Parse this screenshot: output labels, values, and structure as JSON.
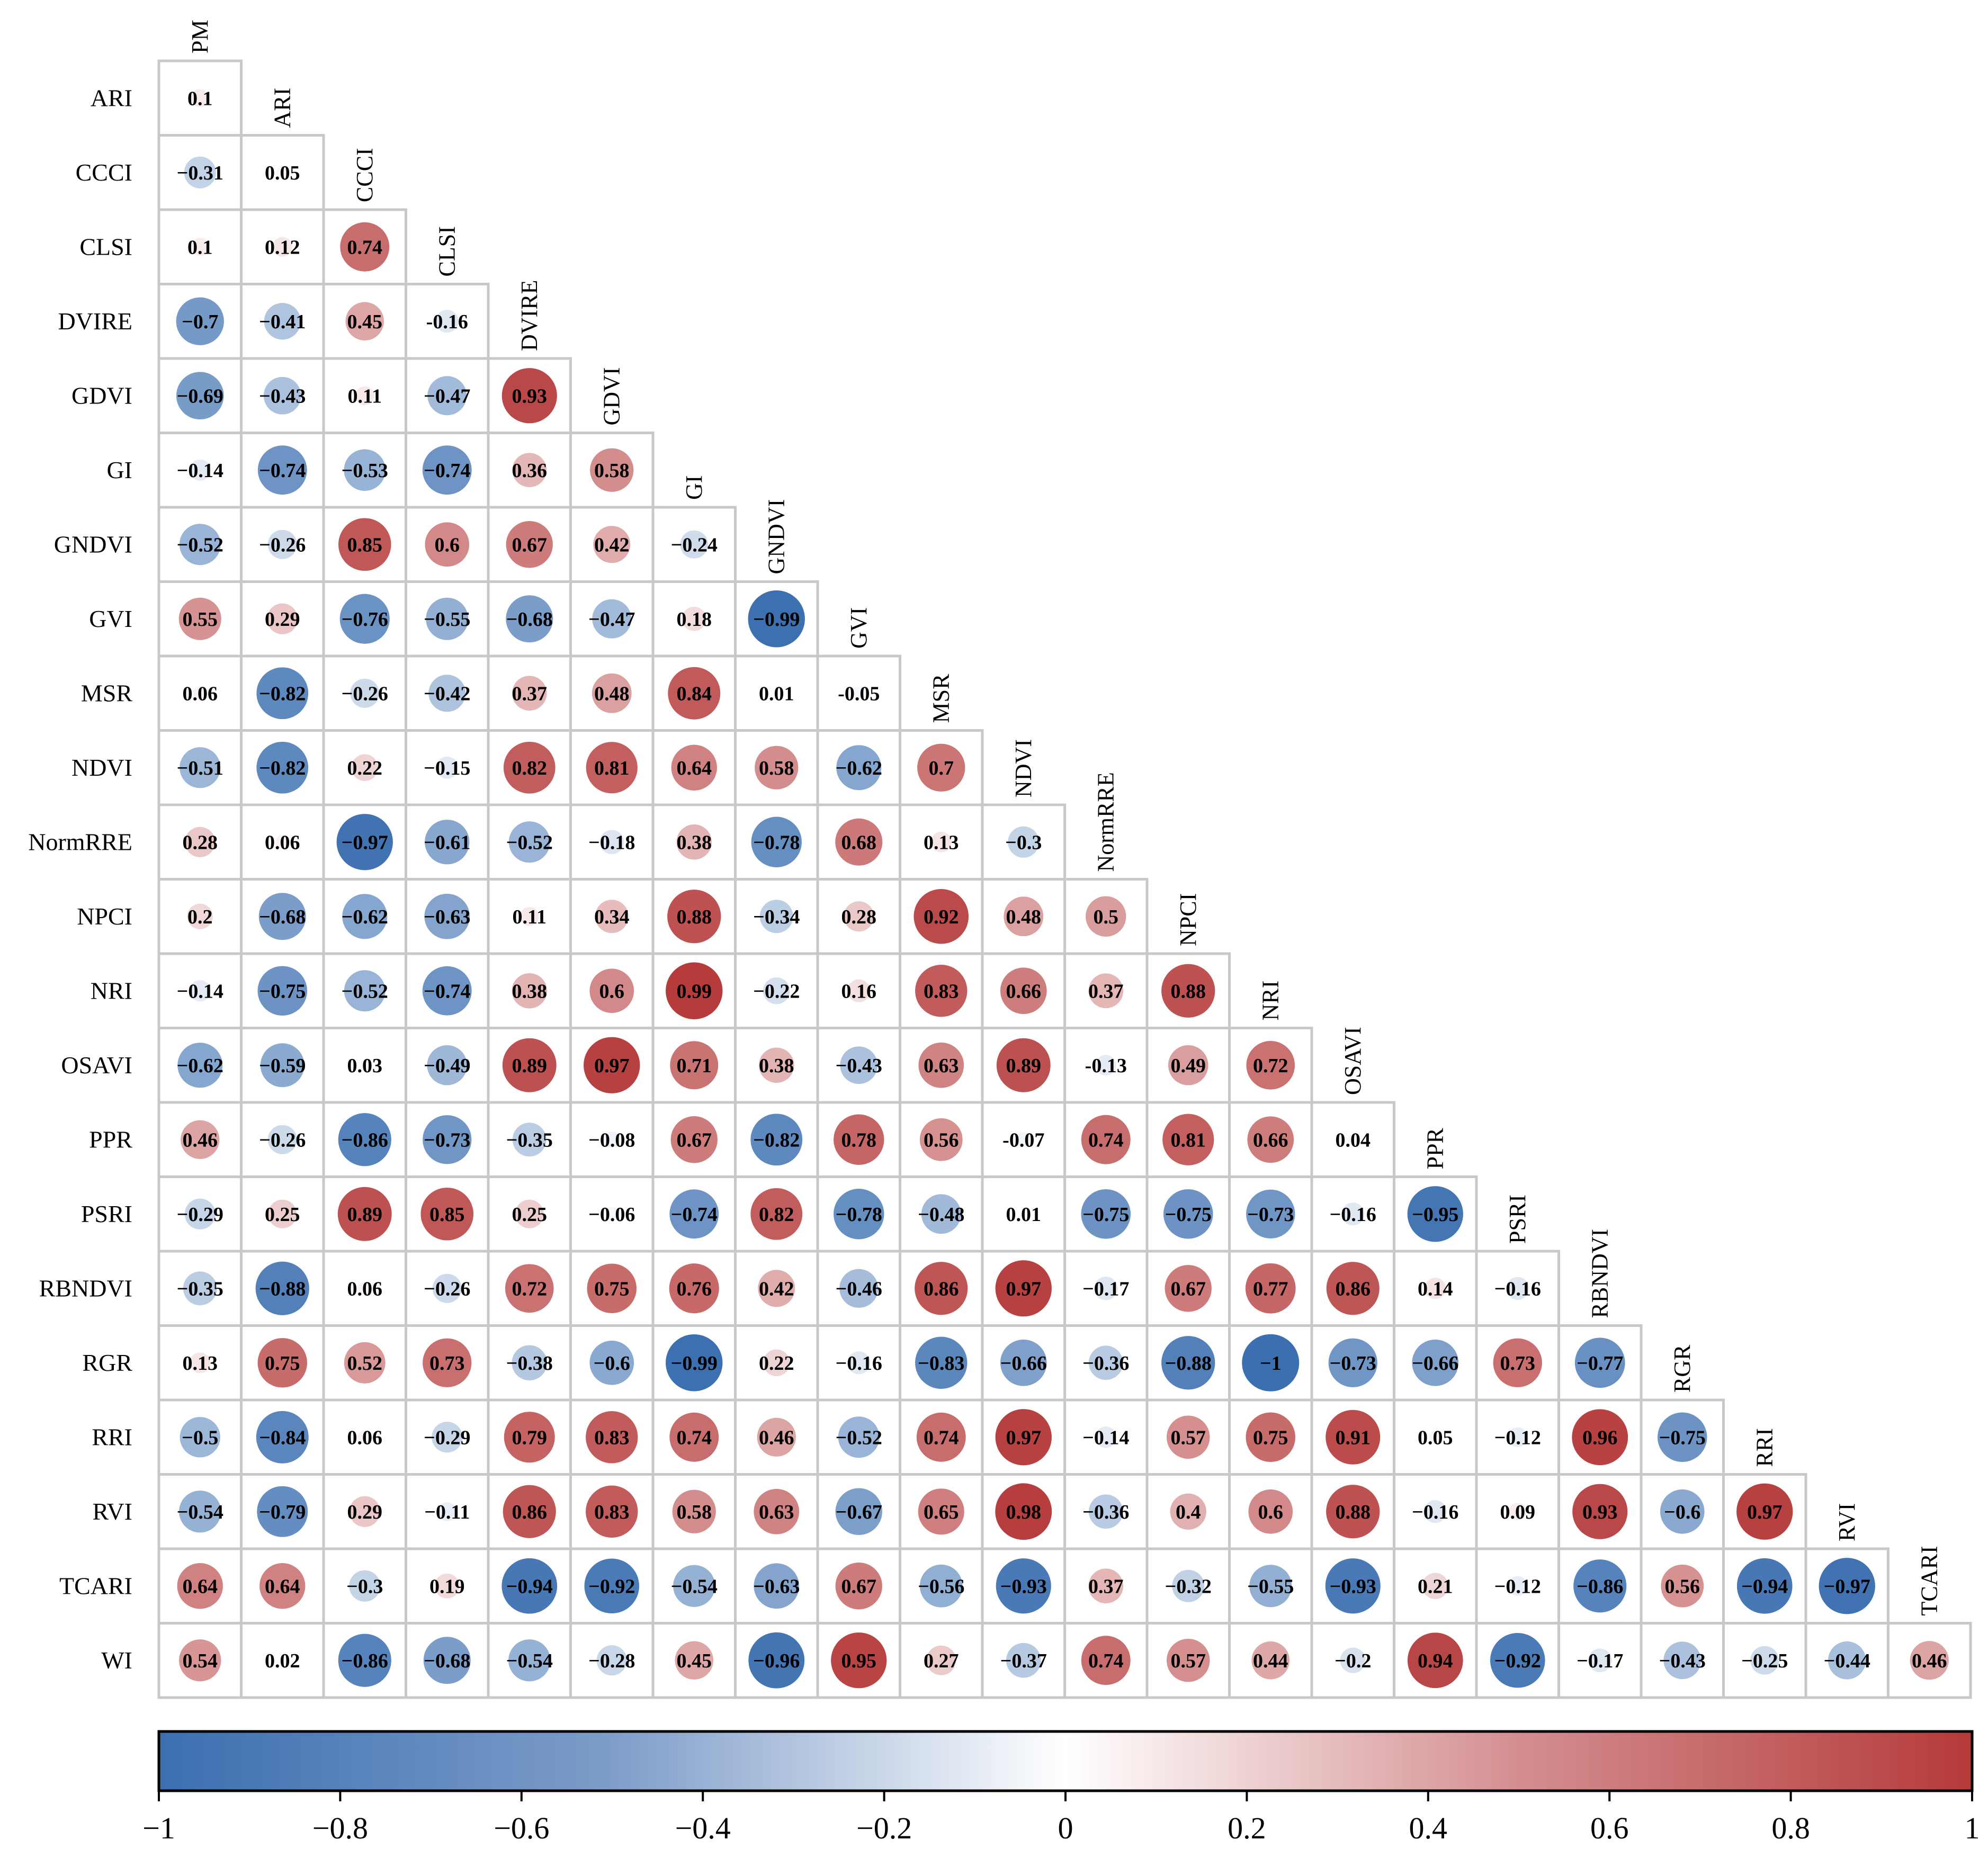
{
  "chart_data": {
    "type": "heatmap",
    "subtype": "lower-triangular correlation matrix (circle size/color = r)",
    "variables": [
      "PM",
      "ARI",
      "CCCI",
      "CLSI",
      "DVIRE",
      "GDVI",
      "GI",
      "GNDVI",
      "GVI",
      "MSR",
      "NDVI",
      "NormRRE",
      "NPCI",
      "NRI",
      "OSAVI",
      "PPR",
      "PSRI",
      "RBNDVI",
      "RGR",
      "RRI",
      "RVI",
      "TCARI",
      "WI"
    ],
    "rows": [
      {
        "label": "ARI",
        "values": [
          "0.1"
        ]
      },
      {
        "label": "CCCI",
        "values": [
          "−0.31",
          "0.05"
        ]
      },
      {
        "label": "CLSI",
        "values": [
          "0.1",
          "0.12",
          "0.74"
        ]
      },
      {
        "label": "DVIRE",
        "values": [
          "−0.7",
          "−0.41",
          "0.45",
          "-0.16"
        ]
      },
      {
        "label": "GDVI",
        "values": [
          "−0.69",
          "−0.43",
          "0.11",
          "−0.47",
          "0.93"
        ]
      },
      {
        "label": "GI",
        "values": [
          "−0.14",
          "−0.74",
          "−0.53",
          "−0.74",
          "0.36",
          "0.58"
        ]
      },
      {
        "label": "GNDVI",
        "values": [
          "−0.52",
          "−0.26",
          "0.85",
          "0.6",
          "0.67",
          "0.42",
          "−0.24"
        ]
      },
      {
        "label": "GVI",
        "values": [
          "0.55",
          "0.29",
          "−0.76",
          "−0.55",
          "−0.68",
          "−0.47",
          "0.18",
          "−0.99"
        ]
      },
      {
        "label": "MSR",
        "values": [
          "0.06",
          "−0.82",
          "−0.26",
          "−0.42",
          "0.37",
          "0.48",
          "0.84",
          "0.01",
          "-0.05"
        ]
      },
      {
        "label": "NDVI",
        "values": [
          "−0.51",
          "−0.82",
          "0.22",
          "−0.15",
          "0.82",
          "0.81",
          "0.64",
          "0.58",
          "−0.62",
          "0.7"
        ]
      },
      {
        "label": "NormRRE",
        "values": [
          "0.28",
          "0.06",
          "−0.97",
          "−0.61",
          "−0.52",
          "−0.18",
          "0.38",
          "−0.78",
          "0.68",
          "0.13",
          "−0.3"
        ]
      },
      {
        "label": "NPCI",
        "values": [
          "0.2",
          "−0.68",
          "−0.62",
          "−0.63",
          "0.11",
          "0.34",
          "0.88",
          "−0.34",
          "0.28",
          "0.92",
          "0.48",
          "0.5"
        ]
      },
      {
        "label": "NRI",
        "values": [
          "−0.14",
          "−0.75",
          "−0.52",
          "−0.74",
          "0.38",
          "0.6",
          "0.99",
          "−0.22",
          "0.16",
          "0.83",
          "0.66",
          "0.37",
          "0.88"
        ]
      },
      {
        "label": "OSAVI",
        "values": [
          "−0.62",
          "−0.59",
          "0.03",
          "−0.49",
          "0.89",
          "0.97",
          "0.71",
          "0.38",
          "−0.43",
          "0.63",
          "0.89",
          "-0.13",
          "0.49",
          "0.72"
        ]
      },
      {
        "label": "PPR",
        "values": [
          "0.46",
          "−0.26",
          "−0.86",
          "−0.73",
          "−0.35",
          "−0.08",
          "0.67",
          "−0.82",
          "0.78",
          "0.56",
          "-0.07",
          "0.74",
          "0.81",
          "0.66",
          "0.04"
        ]
      },
      {
        "label": "PSRI",
        "values": [
          "−0.29",
          "0.25",
          "0.89",
          "0.85",
          "0.25",
          "−0.06",
          "−0.74",
          "0.82",
          "−0.78",
          "−0.48",
          "0.01",
          "−0.75",
          "−0.75",
          "−0.73",
          "−0.16",
          "−0.95"
        ]
      },
      {
        "label": "RBNDVI",
        "values": [
          "−0.35",
          "−0.88",
          "0.06",
          "−0.26",
          "0.72",
          "0.75",
          "0.76",
          "0.42",
          "−0.46",
          "0.86",
          "0.97",
          "−0.17",
          "0.67",
          "0.77",
          "0.86",
          "0.14",
          "−0.16"
        ]
      },
      {
        "label": "RGR",
        "values": [
          "0.13",
          "0.75",
          "0.52",
          "0.73",
          "−0.38",
          "−0.6",
          "−0.99",
          "0.22",
          "−0.16",
          "−0.83",
          "−0.66",
          "−0.36",
          "−0.88",
          "−1",
          "−0.73",
          "−0.66",
          "0.73",
          "−0.77"
        ]
      },
      {
        "label": "RRI",
        "values": [
          "−0.5",
          "−0.84",
          "0.06",
          "−0.29",
          "0.79",
          "0.83",
          "0.74",
          "0.46",
          "−0.52",
          "0.74",
          "0.97",
          "−0.14",
          "0.57",
          "0.75",
          "0.91",
          "0.05",
          "−0.12",
          "0.96",
          "−0.75"
        ]
      },
      {
        "label": "RVI",
        "values": [
          "−0.54",
          "−0.79",
          "0.29",
          "−0.11",
          "0.86",
          "0.83",
          "0.58",
          "0.63",
          "−0.67",
          "0.65",
          "0.98",
          "−0.36",
          "0.4",
          "0.6",
          "0.88",
          "−0.16",
          "0.09",
          "0.93",
          "−0.6",
          "0.97"
        ]
      },
      {
        "label": "TCARI",
        "values": [
          "0.64",
          "0.64",
          "−0.3",
          "0.19",
          "−0.94",
          "−0.92",
          "−0.54",
          "−0.63",
          "0.67",
          "−0.56",
          "−0.93",
          "0.37",
          "−0.32",
          "−0.55",
          "−0.93",
          "0.21",
          "−0.12",
          "−0.86",
          "0.56",
          "−0.94",
          "−0.97"
        ]
      },
      {
        "label": "WI",
        "values": [
          "0.54",
          "0.02",
          "−0.86",
          "−0.68",
          "−0.54",
          "−0.28",
          "0.45",
          "−0.96",
          "0.95",
          "0.27",
          "−0.37",
          "0.74",
          "0.57",
          "0.44",
          "−0.2",
          "0.94",
          "−0.92",
          "−0.17",
          "−0.43",
          "−0.25",
          "−0.44",
          "0.46"
        ]
      }
    ],
    "colorbar": {
      "range": [
        -1,
        1
      ],
      "ticks": [
        "−1",
        "−0.8",
        "−0.6",
        "−0.4",
        "−0.2",
        "0",
        "0.2",
        "0.4",
        "0.6",
        "0.8",
        "1"
      ],
      "colors": {
        "negative": "#3b6fb0",
        "neutral": "#ffffff",
        "positive": "#b53a3a"
      }
    }
  }
}
